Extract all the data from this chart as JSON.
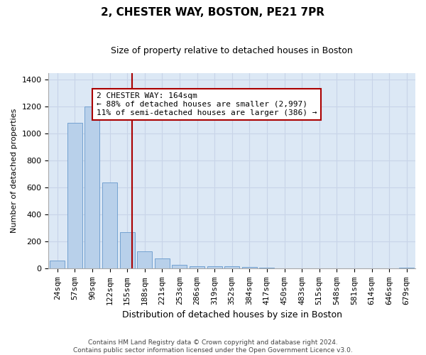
{
  "title": "2, CHESTER WAY, BOSTON, PE21 7PR",
  "subtitle": "Size of property relative to detached houses in Boston",
  "xlabel": "Distribution of detached houses by size in Boston",
  "ylabel": "Number of detached properties",
  "categories": [
    "24sqm",
    "57sqm",
    "90sqm",
    "122sqm",
    "155sqm",
    "188sqm",
    "221sqm",
    "253sqm",
    "286sqm",
    "319sqm",
    "352sqm",
    "384sqm",
    "417sqm",
    "450sqm",
    "483sqm",
    "515sqm",
    "548sqm",
    "581sqm",
    "614sqm",
    "646sqm",
    "679sqm"
  ],
  "values": [
    60,
    1080,
    1200,
    640,
    270,
    130,
    75,
    30,
    20,
    20,
    20,
    15,
    8,
    0,
    0,
    0,
    0,
    0,
    0,
    0,
    8
  ],
  "bar_color": "#b8d0ea",
  "bar_edge_color": "#6699cc",
  "grid_color": "#c8d4e8",
  "background_color": "#dce8f5",
  "vline_color": "#aa0000",
  "annotation_text": "2 CHESTER WAY: 164sqm\n← 88% of detached houses are smaller (2,997)\n11% of semi-detached houses are larger (386) →",
  "annotation_box_color": "#ffffff",
  "annotation_box_edge": "#aa0000",
  "ylim": [
    0,
    1450
  ],
  "yticks": [
    0,
    200,
    400,
    600,
    800,
    1000,
    1200,
    1400
  ],
  "footer": "Contains HM Land Registry data © Crown copyright and database right 2024.\nContains public sector information licensed under the Open Government Licence v3.0.",
  "title_fontsize": 11,
  "subtitle_fontsize": 9,
  "ylabel_fontsize": 8,
  "xlabel_fontsize": 9,
  "tick_fontsize": 8
}
